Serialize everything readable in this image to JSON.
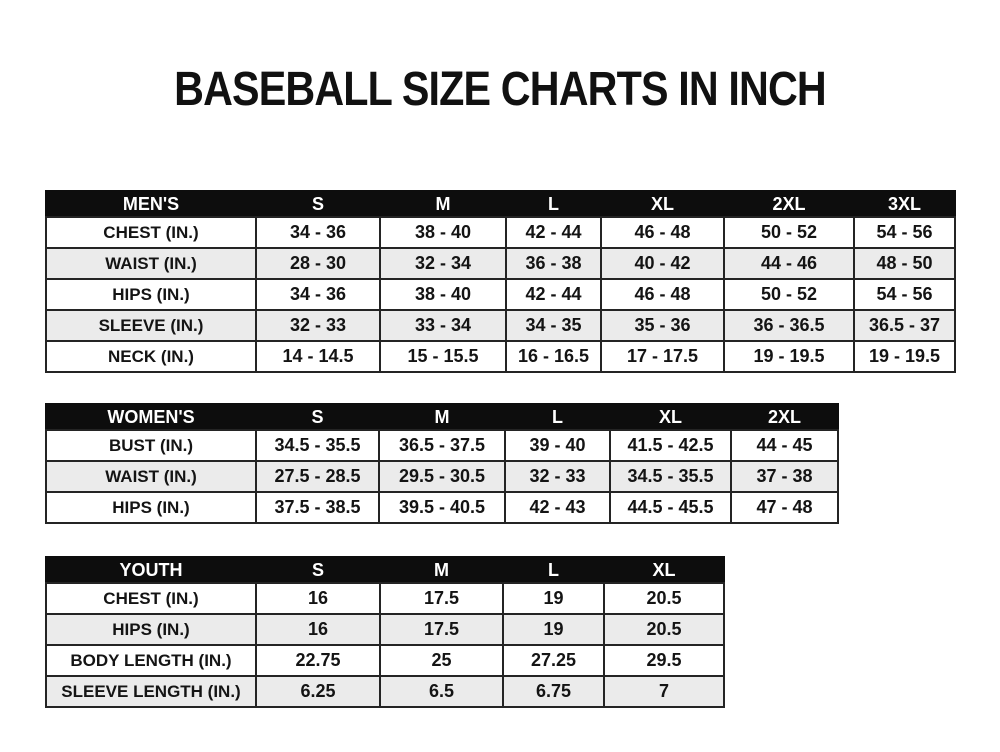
{
  "title": "BASEBALL SIZE CHARTS IN INCH",
  "colors": {
    "header_bg": "#0d0d0d",
    "header_text": "#ffffff",
    "row_bg": "#ffffff",
    "row_alt_bg": "#ebebeb",
    "border": "#242424",
    "text": "#141414"
  },
  "tables": [
    {
      "id": "mens",
      "header": [
        "MEN'S",
        "S",
        "M",
        "L",
        "XL",
        "2XL",
        "3XL"
      ],
      "rows": [
        [
          "CHEST (IN.)",
          "34 - 36",
          "38 - 40",
          "42 - 44",
          "46 - 48",
          "50 - 52",
          "54 - 56"
        ],
        [
          "WAIST (IN.)",
          "28 - 30",
          "32 - 34",
          "36 - 38",
          "40 - 42",
          "44 - 46",
          "48 - 50"
        ],
        [
          "HIPS (IN.)",
          "34 - 36",
          "38 - 40",
          "42 - 44",
          "46 - 48",
          "50 - 52",
          "54 - 56"
        ],
        [
          "SLEEVE (IN.)",
          "32 - 33",
          "33 - 34",
          "34 - 35",
          "35 - 36",
          "36 - 36.5",
          "36.5 - 37"
        ],
        [
          "NECK (IN.)",
          "14 - 14.5",
          "15 - 15.5",
          "16 - 16.5",
          "17 - 17.5",
          "19 - 19.5",
          "19 - 19.5"
        ]
      ]
    },
    {
      "id": "womens",
      "header": [
        "WOMEN'S",
        "S",
        "M",
        "L",
        "XL",
        "2XL"
      ],
      "rows": [
        [
          "BUST (IN.)",
          "34.5 - 35.5",
          "36.5 - 37.5",
          "39 - 40",
          "41.5 - 42.5",
          "44 - 45"
        ],
        [
          "WAIST (IN.)",
          "27.5 - 28.5",
          "29.5 - 30.5",
          "32 - 33",
          "34.5 - 35.5",
          "37 - 38"
        ],
        [
          "HIPS (IN.)",
          "37.5 - 38.5",
          "39.5 - 40.5",
          "42 - 43",
          "44.5 - 45.5",
          "47 - 48"
        ]
      ]
    },
    {
      "id": "youth",
      "header": [
        "YOUTH",
        "S",
        "M",
        "L",
        "XL"
      ],
      "rows": [
        [
          "CHEST (IN.)",
          "16",
          "17.5",
          "19",
          "20.5"
        ],
        [
          "HIPS (IN.)",
          "16",
          "17.5",
          "19",
          "20.5"
        ],
        [
          "BODY LENGTH (IN.)",
          "22.75",
          "25",
          "27.25",
          "29.5"
        ],
        [
          "SLEEVE LENGTH (IN.)",
          "6.25",
          "6.5",
          "6.75",
          "7"
        ]
      ]
    }
  ]
}
